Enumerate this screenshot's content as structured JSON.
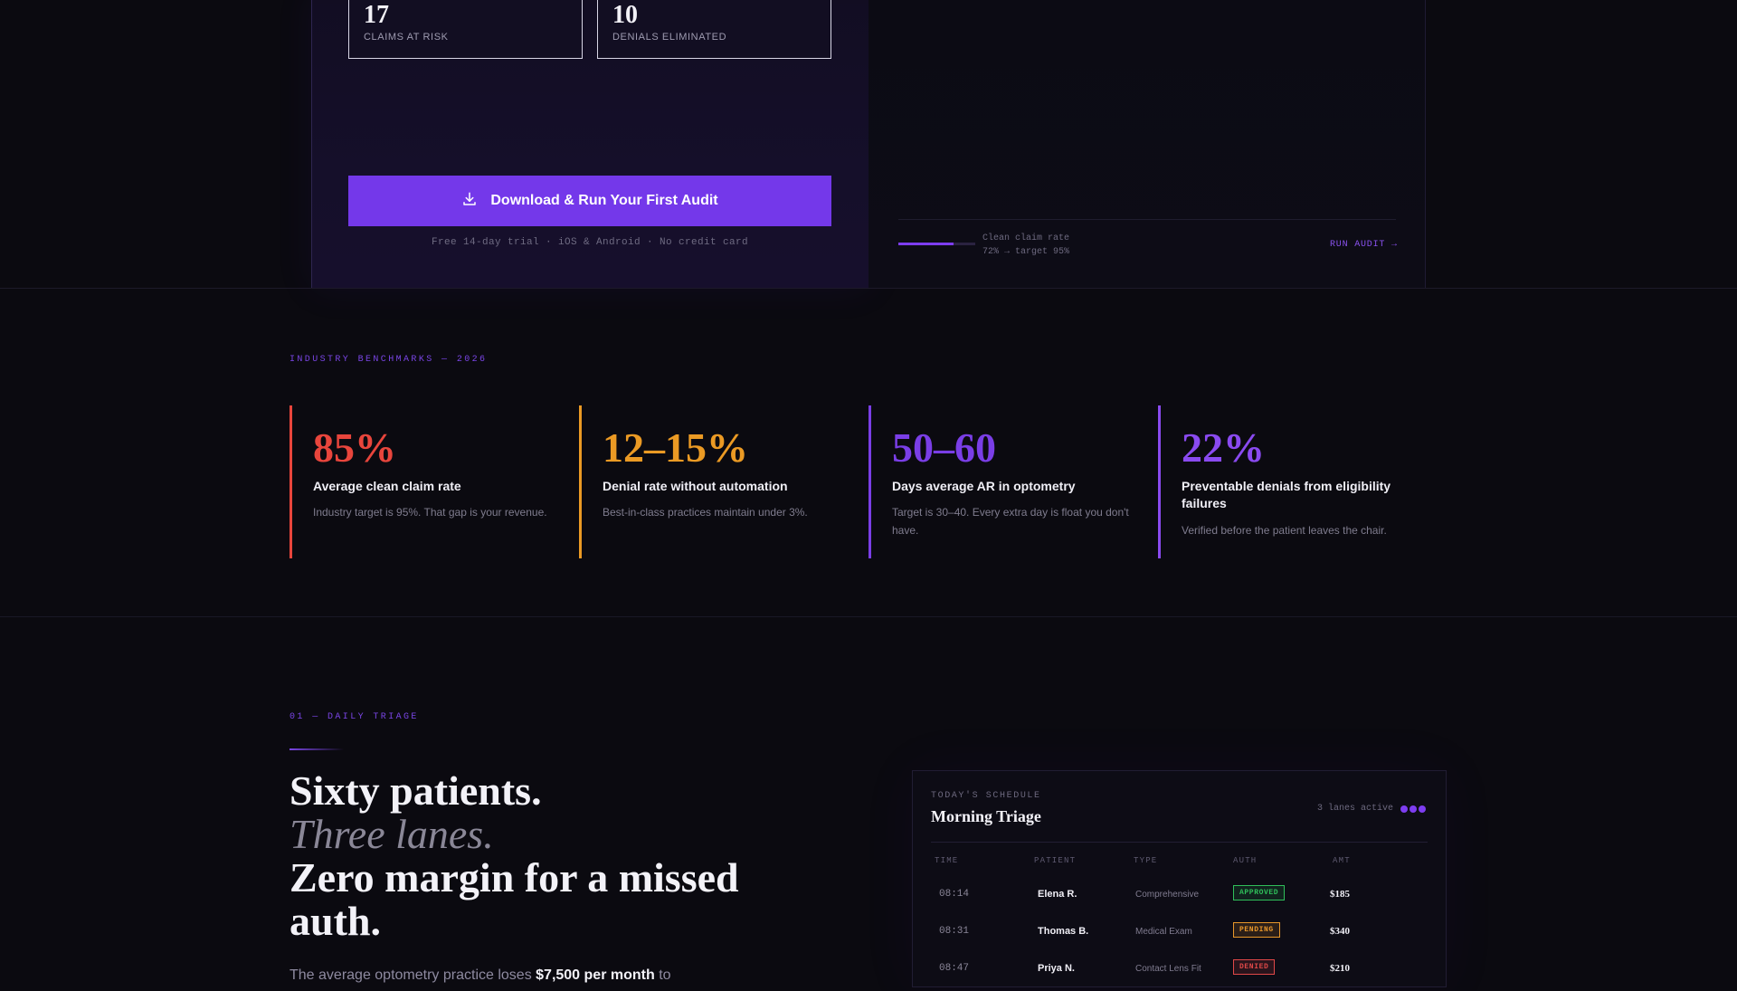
{
  "hero": {
    "stats": [
      {
        "value": "17",
        "label": "CLAIMS AT RISK"
      },
      {
        "value": "10",
        "label": "DENIALS ELIMINATED"
      }
    ],
    "cta_label": "Download & Run Your First Audit",
    "cta_note": "Free 14-day trial · iOS & Android · No credit card",
    "clean_claim_label": "Clean claim rate",
    "clean_claim_detail": "72% → target 95%",
    "clean_claim_progress": 0.72,
    "run_audit_label": "RUN AUDIT →"
  },
  "benchmarks": {
    "eyebrow": "INDUSTRY BENCHMARKS — 2026",
    "items": [
      {
        "value": "85%",
        "title": "Average clean claim rate",
        "desc": "Industry target is 95%. That gap is your revenue.",
        "color": "#e8453c"
      },
      {
        "value": "12–15%",
        "title": "Denial rate without automation",
        "desc": "Best-in-class practices maintain under 3%.",
        "color": "#eb9a24"
      },
      {
        "value": "50–60",
        "title": "Days average AR in optometry",
        "desc": "Target is 30–40. Every extra day is float you don't have.",
        "color": "#7a3ee6"
      },
      {
        "value": "22%",
        "title": "Preventable denials from eligibility failures",
        "desc": "Verified before the patient leaves the chair.",
        "color": "#8a4af0"
      }
    ]
  },
  "triage": {
    "eyebrow": "01 — DAILY TRIAGE",
    "headline_1": "Sixty patients.",
    "headline_2": "Three lanes.",
    "headline_3": "Zero margin for a missed auth.",
    "lede_prefix": "The average optometry practice loses",
    "lede_bold": "$7,500 per month",
    "lede_suffix": "to"
  },
  "schedule": {
    "eyebrow": "TODAY'S SCHEDULE",
    "title": "Morning Triage",
    "lanes_label": "3 lanes active",
    "columns": [
      "TIME",
      "PATIENT",
      "TYPE",
      "AUTH",
      "AMT"
    ],
    "rows": [
      {
        "time": "08:14",
        "patient": "Elena R.",
        "type": "Comprehensive",
        "auth": "APPROVED",
        "amount": "$185"
      },
      {
        "time": "08:31",
        "patient": "Thomas B.",
        "type": "Medical Exam",
        "auth": "PENDING",
        "amount": "$340"
      },
      {
        "time": "08:47",
        "patient": "Priya N.",
        "type": "Contact Lens Fit",
        "auth": "DENIED",
        "amount": "$210"
      }
    ],
    "auth_colors": {
      "APPROVED": "#2fbf5a",
      "PENDING": "#e8972a",
      "DENIED": "#e04848"
    }
  },
  "colors": {
    "accent": "#7438ea",
    "background": "#0b0a10"
  }
}
